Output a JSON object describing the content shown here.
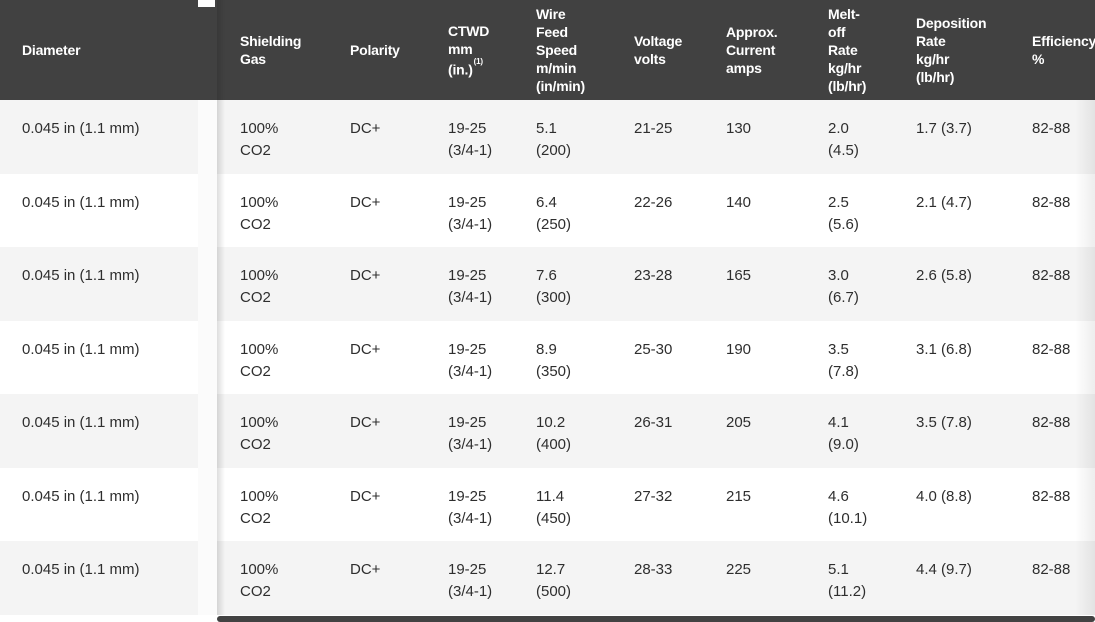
{
  "table": {
    "columns": [
      {
        "id": "diameter",
        "label": "Diameter"
      },
      {
        "id": "shielding_gas",
        "label": "Shielding\nGas"
      },
      {
        "id": "polarity",
        "label": "Polarity"
      },
      {
        "id": "ctwd",
        "label": "CTWD\nmm\n(in.)",
        "footnote_marker": "(1)"
      },
      {
        "id": "wire_feed_speed",
        "label": "Wire\nFeed\nSpeed\nm/min\n(in/min)"
      },
      {
        "id": "voltage",
        "label": "Voltage\nvolts"
      },
      {
        "id": "current",
        "label": "Approx.\nCurrent\namps"
      },
      {
        "id": "melt_off_rate",
        "label": "Melt-\noff\nRate\nkg/hr\n(lb/hr)"
      },
      {
        "id": "deposition_rate",
        "label": "Deposition\nRate\nkg/hr\n(lb/hr)"
      },
      {
        "id": "efficiency",
        "label": "Efficiency\n%"
      }
    ],
    "rows": [
      {
        "diameter": "0.045 in (1.1 mm)",
        "shielding_gas": "100%\nCO2",
        "polarity": "DC+",
        "ctwd": "19-25\n(3/4-1)",
        "wire_feed_speed": "5.1\n(200)",
        "voltage": "21-25",
        "current": "130",
        "melt_off_rate": "2.0\n(4.5)",
        "deposition_rate": "1.7 (3.7)",
        "efficiency": "82-88"
      },
      {
        "diameter": "0.045 in (1.1 mm)",
        "shielding_gas": "100%\nCO2",
        "polarity": "DC+",
        "ctwd": "19-25\n(3/4-1)",
        "wire_feed_speed": "6.4\n(250)",
        "voltage": "22-26",
        "current": "140",
        "melt_off_rate": "2.5\n(5.6)",
        "deposition_rate": "2.1 (4.7)",
        "efficiency": "82-88"
      },
      {
        "diameter": "0.045 in (1.1 mm)",
        "shielding_gas": "100%\nCO2",
        "polarity": "DC+",
        "ctwd": "19-25\n(3/4-1)",
        "wire_feed_speed": "7.6\n(300)",
        "voltage": "23-28",
        "current": "165",
        "melt_off_rate": "3.0\n(6.7)",
        "deposition_rate": "2.6 (5.8)",
        "efficiency": "82-88"
      },
      {
        "diameter": "0.045 in (1.1 mm)",
        "shielding_gas": "100%\nCO2",
        "polarity": "DC+",
        "ctwd": "19-25\n(3/4-1)",
        "wire_feed_speed": "8.9\n(350)",
        "voltage": "25-30",
        "current": "190",
        "melt_off_rate": "3.5\n(7.8)",
        "deposition_rate": "3.1 (6.8)",
        "efficiency": "82-88"
      },
      {
        "diameter": "0.045 in (1.1 mm)",
        "shielding_gas": "100%\nCO2",
        "polarity": "DC+",
        "ctwd": "19-25\n(3/4-1)",
        "wire_feed_speed": "10.2\n(400)",
        "voltage": "26-31",
        "current": "205",
        "melt_off_rate": "4.1\n(9.0)",
        "deposition_rate": "3.5 (7.8)",
        "efficiency": "82-88"
      },
      {
        "diameter": "0.045 in (1.1 mm)",
        "shielding_gas": "100%\nCO2",
        "polarity": "DC+",
        "ctwd": "19-25\n(3/4-1)",
        "wire_feed_speed": "11.4\n(450)",
        "voltage": "27-32",
        "current": "215",
        "melt_off_rate": "4.6\n(10.1)",
        "deposition_rate": "4.0 (8.8)",
        "efficiency": "82-88"
      },
      {
        "diameter": "0.045 in (1.1 mm)",
        "shielding_gas": "100%\nCO2",
        "polarity": "DC+",
        "ctwd": "19-25\n(3/4-1)",
        "wire_feed_speed": "12.7\n(500)",
        "voltage": "28-33",
        "current": "225",
        "melt_off_rate": "5.1\n(11.2)",
        "deposition_rate": "4.4 (9.7)",
        "efficiency": "82-88"
      }
    ]
  },
  "colors": {
    "header_bg": "#414141",
    "header_text": "#ffffff",
    "row_alt_bg": "#f4f4f4",
    "row_bg": "#ffffff",
    "body_text": "#2e2e2e",
    "scrollbar": "#424242"
  }
}
